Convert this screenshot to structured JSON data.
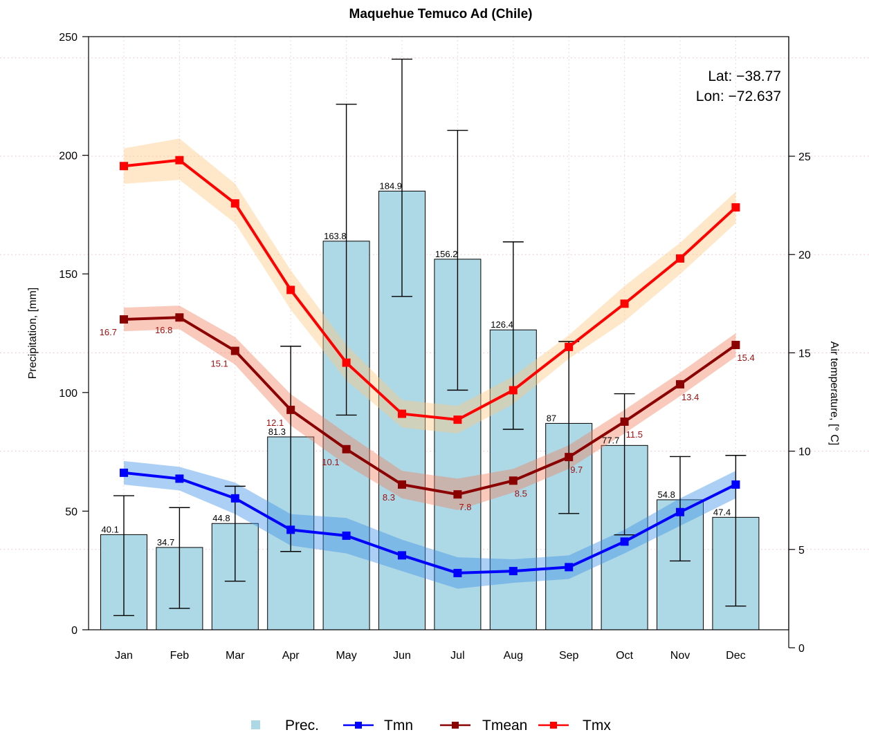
{
  "chart_data": {
    "type": "bar+line",
    "title": "Maquehue Temuco Ad (Chile)",
    "annotation_lines": [
      "Lat: −38.77",
      "Lon: −72.637"
    ],
    "categories": [
      "Jan",
      "Feb",
      "Mar",
      "Apr",
      "May",
      "Jun",
      "Jul",
      "Aug",
      "Sep",
      "Oct",
      "Nov",
      "Dec"
    ],
    "y_left": {
      "label": "Precipitation, [mm]",
      "lim": [
        0,
        250
      ],
      "ticks": [
        0,
        50,
        100,
        150,
        200,
        250
      ]
    },
    "y_right": {
      "label": "Air temperature, [° C]",
      "lim": [
        0,
        30
      ],
      "ticks": [
        0,
        5,
        10,
        15,
        20,
        25
      ]
    },
    "precipitation": {
      "name": "Prec.",
      "color": "#add8e6",
      "values": [
        40.1,
        34.7,
        44.8,
        81.3,
        163.8,
        184.9,
        156.2,
        126.4,
        87,
        77.7,
        54.8,
        47.4
      ],
      "labels": [
        "40.1",
        "34.7",
        "44.8",
        "81.3",
        "163.8",
        "184.9",
        "156.2",
        "126.4",
        "87",
        "77.7",
        "54.8",
        "47.4"
      ],
      "err_low": [
        6,
        9,
        20.5,
        33,
        90.5,
        140.5,
        101,
        84.5,
        49,
        40,
        29,
        10
      ],
      "err_high": [
        56.5,
        51.5,
        60.5,
        119.5,
        221.5,
        240.5,
        210.5,
        163.5,
        121.5,
        99.5,
        73,
        73.5
      ]
    },
    "series": [
      {
        "name": "Tmn",
        "color": "#0000ff",
        "band_color": "#3a8ee6",
        "values": [
          8.9,
          8.6,
          7.6,
          6.0,
          5.7,
          4.7,
          3.8,
          3.9,
          4.1,
          5.4,
          6.9,
          8.3
        ],
        "band_low": [
          8.3,
          8.0,
          6.8,
          5.2,
          4.8,
          3.9,
          3.0,
          3.3,
          3.5,
          4.8,
          6.2,
          7.6
        ],
        "band_high": [
          9.5,
          9.2,
          8.4,
          6.8,
          6.6,
          5.5,
          4.6,
          4.5,
          4.7,
          6.0,
          7.6,
          9.0
        ]
      },
      {
        "name": "Tmean",
        "color": "#8b0000",
        "band_color": "#f08060",
        "values": [
          16.7,
          16.8,
          15.1,
          12.1,
          10.1,
          8.3,
          7.8,
          8.5,
          9.7,
          11.5,
          13.4,
          15.4
        ],
        "labels": [
          "16.7",
          "16.8",
          "15.1",
          "12.1",
          "10.1",
          "8.3",
          "7.8",
          "8.5",
          "9.7",
          "11.5",
          "13.4",
          "15.4"
        ],
        "band_low": [
          16.1,
          16.2,
          14.4,
          11.3,
          9.3,
          7.6,
          7.0,
          7.9,
          9.1,
          10.9,
          12.8,
          14.8
        ],
        "band_high": [
          17.3,
          17.4,
          15.8,
          12.9,
          10.9,
          9.0,
          8.6,
          9.1,
          10.3,
          12.1,
          14.0,
          16.0
        ]
      },
      {
        "name": "Tmx",
        "color": "#ff0000",
        "band_color": "#ffc880",
        "values": [
          24.5,
          24.8,
          22.6,
          18.2,
          14.5,
          11.9,
          11.6,
          13.1,
          15.3,
          17.5,
          19.8,
          22.4
        ],
        "band_low": [
          23.6,
          23.8,
          21.6,
          17.2,
          13.6,
          11.2,
          10.9,
          12.4,
          14.7,
          16.6,
          19.0,
          21.6
        ],
        "band_high": [
          25.4,
          25.9,
          23.6,
          19.2,
          15.4,
          12.6,
          12.3,
          13.8,
          15.9,
          18.4,
          20.6,
          23.2
        ]
      }
    ],
    "legend": {
      "placement": "bottom-center",
      "items": [
        "Prec.",
        "Tmn",
        "Tmean",
        "Tmx"
      ]
    },
    "grid": true
  }
}
